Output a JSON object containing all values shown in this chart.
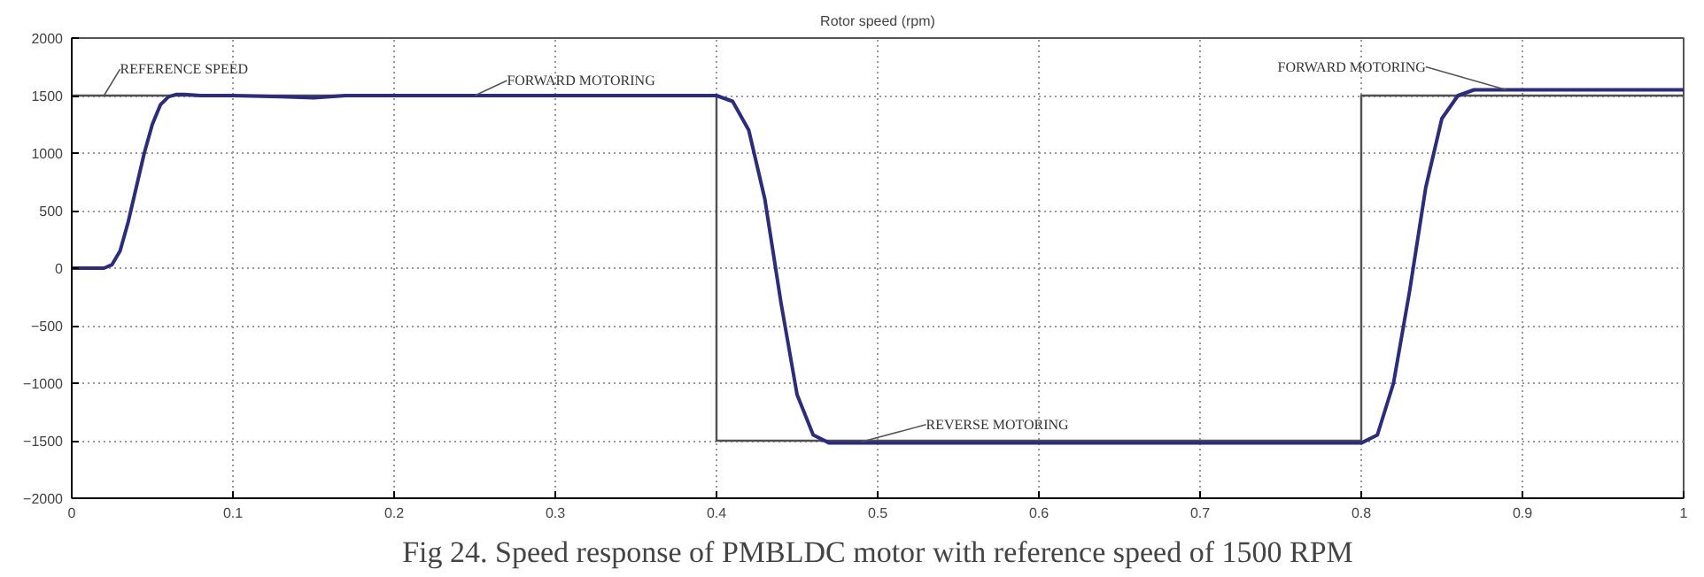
{
  "chart_data": {
    "type": "line",
    "title": "Rotor speed (rpm)",
    "series": [
      {
        "color": "#505050",
        "x": [
          0,
          0.4,
          0.4,
          0.8,
          0.8,
          1.0
        ],
        "values": [
          1500,
          1500,
          -1500,
          -1500,
          1500,
          1500
        ]
      },
      {
        "color": "#2b2b80",
        "x": [
          0,
          0.02,
          0.025,
          0.03,
          0.035,
          0.04,
          0.045,
          0.05,
          0.055,
          0.06,
          0.065,
          0.07,
          0.08,
          0.1,
          0.13,
          0.15,
          0.17,
          0.18,
          0.4,
          0.41,
          0.42,
          0.43,
          0.44,
          0.45,
          0.46,
          0.47,
          0.48,
          0.6,
          0.8,
          0.81,
          0.82,
          0.83,
          0.84,
          0.85,
          0.86,
          0.87,
          0.9,
          1.0
        ],
        "values": [
          0,
          0,
          30,
          150,
          400,
          700,
          1000,
          1250,
          1420,
          1490,
          1510,
          1510,
          1500,
          1500,
          1490,
          1480,
          1500,
          1500,
          1500,
          1450,
          1200,
          600,
          -300,
          -1100,
          -1450,
          -1520,
          -1520,
          -1520,
          -1520,
          -1450,
          -1000,
          -200,
          700,
          1300,
          1500,
          1550,
          1550,
          1550
        ]
      }
    ],
    "xlim": [
      0,
      1
    ],
    "xticks": [
      0,
      0.1,
      0.2,
      0.3,
      0.4,
      0.5,
      0.6,
      0.7,
      0.8,
      0.9,
      1
    ],
    "ylim": [
      -2000,
      2000
    ],
    "yticks": [
      -2000,
      -1500,
      -1000,
      -500,
      0,
      500,
      1000,
      1500,
      2000
    ],
    "grid": true,
    "line_style": "solid",
    "marker": "none",
    "annotations": [
      {
        "text": "REFERENCE SPEED",
        "x": 0.02,
        "y": 1500
      },
      {
        "text": "FORWARD MOTORING",
        "x": 0.25,
        "y": 1500
      },
      {
        "text": "REVERSE MOTORING",
        "x": 0.49,
        "y": -1510
      },
      {
        "text": "FORWARD MOTORING",
        "x": 0.89,
        "y": 1550
      },
      "Fig 24. Speed response of PMBLDC motor with reference speed of 1500 RPM"
    ]
  }
}
